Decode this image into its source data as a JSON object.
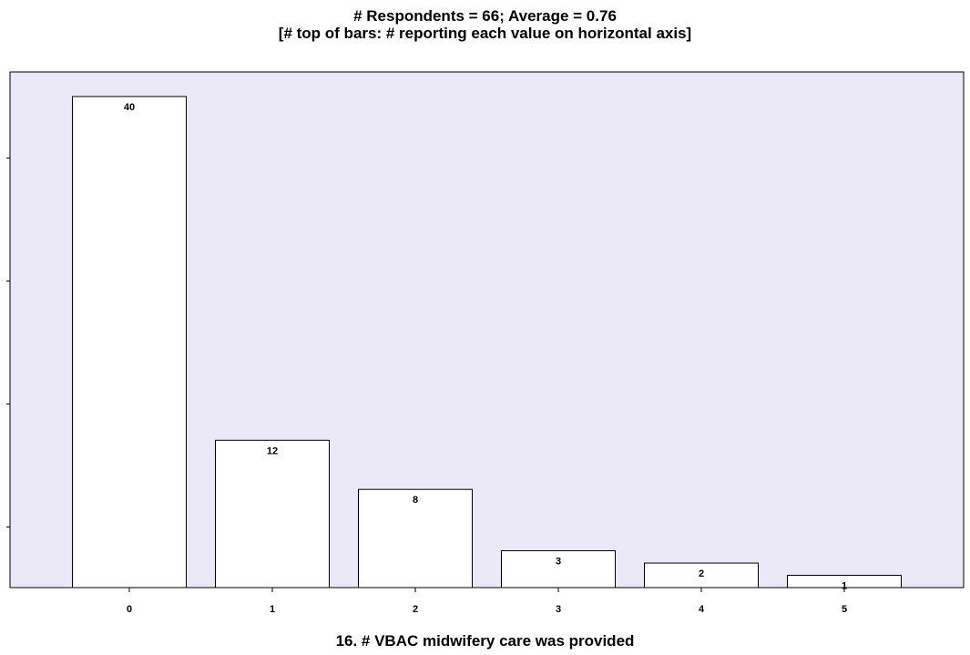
{
  "chart_data": {
    "type": "bar",
    "title": "# Respondents = 66; Average = 0.76",
    "subtitle": "[# top of bars: # reporting each value on horizontal axis]",
    "xlabel": "16. # VBAC midwifery care was provided",
    "ylabel": "",
    "categories": [
      "0",
      "1",
      "2",
      "3",
      "4",
      "5"
    ],
    "values": [
      40,
      12,
      8,
      3,
      2,
      1
    ],
    "data_labels": [
      "40",
      "12",
      "8",
      "3",
      "2",
      "1"
    ],
    "ylim": [
      0,
      42
    ],
    "y_ticks": [
      5,
      15,
      25,
      35
    ],
    "grid": false,
    "colors": {
      "plot_background": "#ebe9f7",
      "bar_fill": "#ffffff",
      "bar_stroke": "#000000"
    }
  }
}
